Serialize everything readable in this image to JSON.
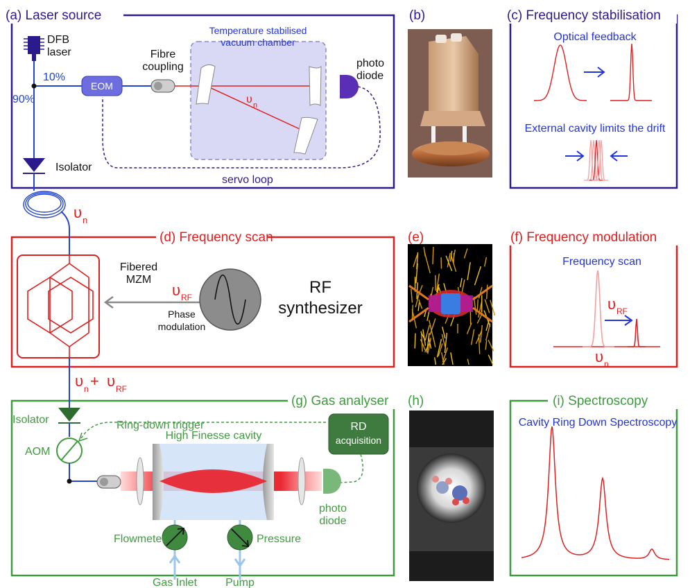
{
  "panels": {
    "a": {
      "title": "(a) Laser source"
    },
    "b": {
      "title": "(b)"
    },
    "c": {
      "title": "(c) Frequency stabilisation"
    },
    "d": {
      "title": "(d) Frequency scan"
    },
    "e": {
      "title": "(e)"
    },
    "f": {
      "title": "(f) Frequency modulation"
    },
    "g": {
      "title": "(g) Gas analyser"
    },
    "h": {
      "title": "(h)"
    },
    "i": {
      "title": "(i) Spectroscopy"
    }
  },
  "laser": {
    "dfb": "DFB",
    "dfb2": "laser",
    "pct10": "10%",
    "pct90": "90%",
    "eom": "EOM",
    "fibre1": "Fibre",
    "fibre2": "coupling",
    "chamber1": "Temperature stabilised",
    "chamber2": "vacuum chamber",
    "photo1": "photo",
    "photo2": "diode",
    "nu": "υ",
    "nu_sub": "n",
    "isolator": "Isolator",
    "servo": "servo loop"
  },
  "fiber_nu": {
    "sym": "υ",
    "sub": "n"
  },
  "stab": {
    "optical_feedback": "Optical feedback",
    "external_cavity": "External cavity limits the drift"
  },
  "scan": {
    "fibered": "Fibered",
    "mzm": "MZM",
    "nu_rf": "υ",
    "rf_sub": "RF",
    "phase1": "Phase",
    "phase2": "modulation",
    "rf1": "RF",
    "rf2": "synthesizer"
  },
  "sum": {
    "a": "υ",
    "a_sub": "n",
    "plus": " + ",
    "b": "υ",
    "b_sub": "RF"
  },
  "fmod": {
    "scan_title": "Frequency scan",
    "nu_rf": "υ",
    "rf_sub": "RF",
    "nu_n": "υ",
    "n_sub": "n"
  },
  "gas": {
    "isolator": "Isolator",
    "trigger": "Ring-down trigger",
    "aom": "AOM",
    "cavity": "High Finesse cavity",
    "rd1": "RD",
    "rd2": "acquisition",
    "photo1": "photo",
    "photo2": "diode",
    "flowmeter": "Flowmeter",
    "pressure": "Pressure",
    "inlet": "Gas Inlet",
    "pump": "Pump"
  },
  "spectro": {
    "title": "Cavity Ring Down Spectroscopy"
  },
  "colors": {
    "navy": "#2a1a8c",
    "blue": "#2233dd",
    "red": "#dd1f1f",
    "green": "#3f9a3f",
    "darkgreen": "#3f7a3f",
    "pink": "#f0a0a0"
  }
}
